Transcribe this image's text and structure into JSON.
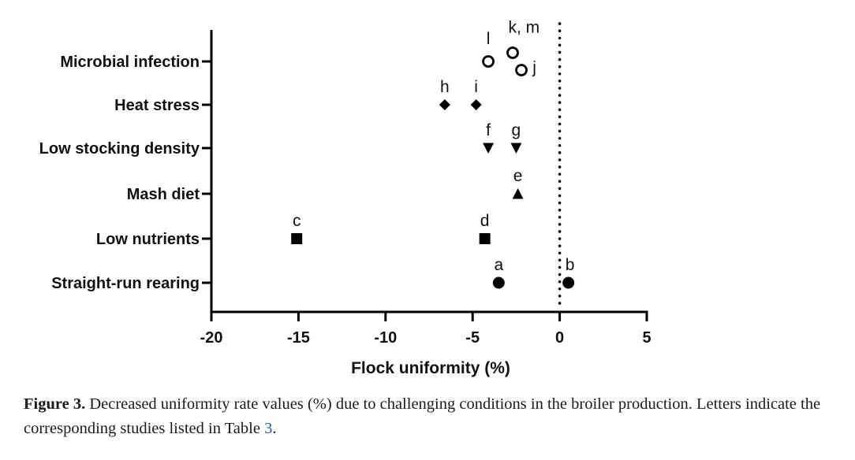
{
  "chart_data": {
    "type": "scatter",
    "xlabel": "Flock uniformity (%)",
    "ylabel": "",
    "xlim": [
      -20,
      5
    ],
    "xticks": [
      -20,
      -15,
      -10,
      -5,
      0,
      5
    ],
    "reference_line_x": 0,
    "reference_line_style": "dotted",
    "categories": [
      "Microbial infection",
      "Heat stress",
      "Low stocking density",
      "Mash diet",
      "Low nutrients",
      "Straight-run rearing"
    ],
    "points": [
      {
        "category": "Microbial infection",
        "x": -4.1,
        "label": "l",
        "marker": "open-circle"
      },
      {
        "category": "Microbial infection",
        "x": -2.7,
        "label": "k, m",
        "marker": "open-circle"
      },
      {
        "category": "Microbial infection",
        "x": -2.2,
        "label": "j",
        "marker": "open-circle"
      },
      {
        "category": "Heat stress",
        "x": -6.6,
        "label": "h",
        "marker": "diamond"
      },
      {
        "category": "Heat stress",
        "x": -4.8,
        "label": "i",
        "marker": "diamond"
      },
      {
        "category": "Low stocking density",
        "x": -4.1,
        "label": "f",
        "marker": "triangle-down"
      },
      {
        "category": "Low stocking density",
        "x": -2.5,
        "label": "g",
        "marker": "triangle-down"
      },
      {
        "category": "Mash diet",
        "x": -2.4,
        "label": "e",
        "marker": "triangle-up"
      },
      {
        "category": "Low nutrients",
        "x": -15.1,
        "label": "c",
        "marker": "square"
      },
      {
        "category": "Low nutrients",
        "x": -4.3,
        "label": "d",
        "marker": "square"
      },
      {
        "category": "Straight-run rearing",
        "x": -3.5,
        "label": "a",
        "marker": "circle"
      },
      {
        "category": "Straight-run rearing",
        "x": 0.5,
        "label": "b",
        "marker": "circle"
      }
    ]
  },
  "caption": {
    "label": "Figure 3.",
    "text_before_ref": " Decreased uniformity rate values (%) due to challenging conditions in the broiler production. Letters indicate the corresponding studies listed in Table ",
    "ref": "3",
    "text_after_ref": "."
  }
}
